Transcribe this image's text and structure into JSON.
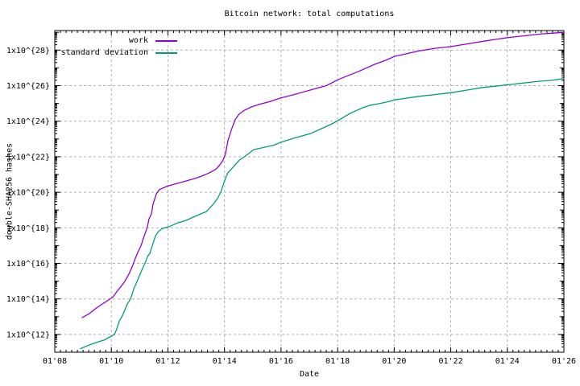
{
  "title": "Bitcoin network: total computations",
  "axes": {
    "xlabel": "Date",
    "ylabel": "double-SHA256 hashes"
  },
  "colors": {
    "background": "#ffffff",
    "border": "#000000",
    "grid": "#b0b0b0",
    "text": "#000000",
    "work": "#9400d3",
    "standard_deviation": "#009e73"
  },
  "chart_data": {
    "type": "line",
    "title": "Bitcoin network: total computations",
    "xlabel": "Date",
    "ylabel": "double-SHA256 hashes",
    "grid": "dashed",
    "legend_position": "top-left",
    "x_axis": {
      "unit": "year",
      "lim": [
        2008,
        2026
      ],
      "minor_tick_step_years": 0.2,
      "ticks": [
        {
          "year": 2008,
          "label": "01'08"
        },
        {
          "year": 2010,
          "label": "01'10"
        },
        {
          "year": 2012,
          "label": "01'12"
        },
        {
          "year": 2014,
          "label": "01'14"
        },
        {
          "year": 2016,
          "label": "01'16"
        },
        {
          "year": 2018,
          "label": "01'18"
        },
        {
          "year": 2020,
          "label": "01'20"
        },
        {
          "year": 2022,
          "label": "01'22"
        },
        {
          "year": 2024,
          "label": "01'24"
        },
        {
          "year": 2026,
          "label": "01'26"
        }
      ]
    },
    "y_axis": {
      "scale": "log10",
      "unit": "double-SHA256 hashes",
      "lim_exponents": [
        11,
        29.1
      ],
      "ticks": [
        {
          "exp": 12,
          "label": "1x10^{12}"
        },
        {
          "exp": 14,
          "label": "1x10^{14}"
        },
        {
          "exp": 16,
          "label": "1x10^{16}"
        },
        {
          "exp": 18,
          "label": "1x10^{18}"
        },
        {
          "exp": 20,
          "label": "1x10^{20}"
        },
        {
          "exp": 22,
          "label": "1x10^{22}"
        },
        {
          "exp": 24,
          "label": "1x10^{24}"
        },
        {
          "exp": 26,
          "label": "1x10^{26}"
        },
        {
          "exp": 28,
          "label": "1x10^{28}"
        }
      ]
    },
    "series": [
      {
        "name": "work",
        "color": "#9400d3",
        "points_year_log10": [
          [
            2008.97,
            12.95
          ],
          [
            2009.2,
            13.15
          ],
          [
            2009.48,
            13.5
          ],
          [
            2009.77,
            13.8
          ],
          [
            2010.05,
            14.1
          ],
          [
            2010.19,
            14.4
          ],
          [
            2010.34,
            14.7
          ],
          [
            2010.48,
            15.0
          ],
          [
            2010.62,
            15.4
          ],
          [
            2010.76,
            15.9
          ],
          [
            2010.85,
            16.3
          ],
          [
            2010.96,
            16.7
          ],
          [
            2011.05,
            17.0
          ],
          [
            2011.13,
            17.4
          ],
          [
            2011.22,
            17.8
          ],
          [
            2011.28,
            18.1
          ],
          [
            2011.33,
            18.5
          ],
          [
            2011.42,
            18.8
          ],
          [
            2011.47,
            19.3
          ],
          [
            2011.59,
            19.9
          ],
          [
            2011.7,
            20.15
          ],
          [
            2011.84,
            20.25
          ],
          [
            2011.99,
            20.35
          ],
          [
            2012.33,
            20.5
          ],
          [
            2012.67,
            20.65
          ],
          [
            2012.9,
            20.75
          ],
          [
            2013.18,
            20.9
          ],
          [
            2013.47,
            21.1
          ],
          [
            2013.7,
            21.3
          ],
          [
            2013.84,
            21.55
          ],
          [
            2013.95,
            21.8
          ],
          [
            2014.04,
            22.2
          ],
          [
            2014.12,
            22.9
          ],
          [
            2014.24,
            23.5
          ],
          [
            2014.38,
            24.1
          ],
          [
            2014.52,
            24.4
          ],
          [
            2014.69,
            24.6
          ],
          [
            2014.95,
            24.8
          ],
          [
            2015.23,
            24.95
          ],
          [
            2015.6,
            25.1
          ],
          [
            2015.97,
            25.3
          ],
          [
            2016.46,
            25.5
          ],
          [
            2017.03,
            25.75
          ],
          [
            2017.6,
            26.0
          ],
          [
            2018.03,
            26.35
          ],
          [
            2018.74,
            26.8
          ],
          [
            2019.31,
            27.2
          ],
          [
            2019.73,
            27.45
          ],
          [
            2020.02,
            27.65
          ],
          [
            2020.45,
            27.8
          ],
          [
            2020.87,
            27.95
          ],
          [
            2021.44,
            28.1
          ],
          [
            2022.01,
            28.2
          ],
          [
            2022.58,
            28.35
          ],
          [
            2023.15,
            28.5
          ],
          [
            2023.58,
            28.6
          ],
          [
            2024.01,
            28.7
          ],
          [
            2024.58,
            28.8
          ],
          [
            2025.15,
            28.9
          ],
          [
            2025.57,
            28.95
          ],
          [
            2026.0,
            29.0
          ]
        ]
      },
      {
        "name": "standard deviation",
        "color": "#009e73",
        "points_year_log10": [
          [
            2008.91,
            11.2
          ],
          [
            2009.2,
            11.4
          ],
          [
            2009.48,
            11.55
          ],
          [
            2009.77,
            11.7
          ],
          [
            2009.99,
            11.9
          ],
          [
            2010.11,
            12.0
          ],
          [
            2010.19,
            12.3
          ],
          [
            2010.28,
            12.75
          ],
          [
            2010.39,
            13.05
          ],
          [
            2010.48,
            13.4
          ],
          [
            2010.56,
            13.7
          ],
          [
            2010.68,
            14.0
          ],
          [
            2010.79,
            14.55
          ],
          [
            2010.91,
            15.0
          ],
          [
            2010.99,
            15.3
          ],
          [
            2011.1,
            15.7
          ],
          [
            2011.19,
            16.0
          ],
          [
            2011.28,
            16.4
          ],
          [
            2011.36,
            16.55
          ],
          [
            2011.47,
            17.1
          ],
          [
            2011.56,
            17.55
          ],
          [
            2011.67,
            17.8
          ],
          [
            2011.79,
            17.95
          ],
          [
            2011.93,
            18.02
          ],
          [
            2012.1,
            18.1
          ],
          [
            2012.33,
            18.27
          ],
          [
            2012.61,
            18.4
          ],
          [
            2012.9,
            18.6
          ],
          [
            2013.18,
            18.8
          ],
          [
            2013.35,
            18.9
          ],
          [
            2013.5,
            19.15
          ],
          [
            2013.64,
            19.4
          ],
          [
            2013.75,
            19.65
          ],
          [
            2013.87,
            20.0
          ],
          [
            2013.95,
            20.4
          ],
          [
            2014.04,
            20.8
          ],
          [
            2014.12,
            21.1
          ],
          [
            2014.24,
            21.3
          ],
          [
            2014.38,
            21.55
          ],
          [
            2014.52,
            21.8
          ],
          [
            2014.66,
            21.95
          ],
          [
            2014.83,
            22.15
          ],
          [
            2015.03,
            22.4
          ],
          [
            2015.32,
            22.5
          ],
          [
            2015.75,
            22.65
          ],
          [
            2015.97,
            22.8
          ],
          [
            2016.46,
            23.05
          ],
          [
            2017.03,
            23.3
          ],
          [
            2017.46,
            23.6
          ],
          [
            2017.8,
            23.85
          ],
          [
            2018.03,
            24.05
          ],
          [
            2018.45,
            24.45
          ],
          [
            2018.88,
            24.75
          ],
          [
            2019.16,
            24.9
          ],
          [
            2019.51,
            25.0
          ],
          [
            2019.79,
            25.1
          ],
          [
            2020.02,
            25.2
          ],
          [
            2020.45,
            25.3
          ],
          [
            2020.87,
            25.4
          ],
          [
            2021.44,
            25.5
          ],
          [
            2022.01,
            25.6
          ],
          [
            2022.58,
            25.75
          ],
          [
            2023.15,
            25.9
          ],
          [
            2023.58,
            25.97
          ],
          [
            2024.01,
            26.05
          ],
          [
            2024.58,
            26.15
          ],
          [
            2025.15,
            26.25
          ],
          [
            2025.57,
            26.3
          ],
          [
            2026.0,
            26.4
          ]
        ]
      }
    ]
  }
}
